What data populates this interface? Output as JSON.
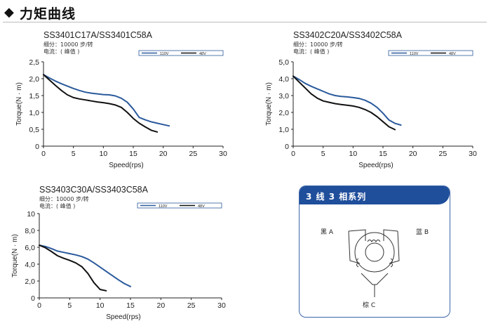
{
  "header": {
    "diamond": "◆",
    "title": "力矩曲线"
  },
  "chart_data": [
    {
      "type": "line",
      "model": "SS3401C17A/SS3401C58A",
      "sub1": "细分：10000 步/转",
      "sub2": "电流：( 峰值 )",
      "xlabel": "Speed(rps)",
      "ylabel": "Torque(N · m)",
      "xlim": [
        0,
        30
      ],
      "ylim": [
        0,
        2.5
      ],
      "xticks": [
        "0",
        "5",
        "10",
        "15",
        "20",
        "25",
        "30"
      ],
      "yticks": [
        "0",
        "0,5",
        "1,0",
        "1,5",
        "2,0",
        "2,5"
      ],
      "legend": "top-right",
      "series": [
        {
          "name": "110V",
          "color": "#2a5a9c",
          "x": [
            0,
            1,
            2,
            3,
            4,
            5,
            6,
            7,
            8,
            9,
            10,
            11,
            12,
            13,
            14,
            15,
            16,
            17,
            18,
            19,
            20,
            21
          ],
          "y": [
            2.12,
            2.02,
            1.93,
            1.85,
            1.78,
            1.71,
            1.65,
            1.6,
            1.57,
            1.55,
            1.53,
            1.52,
            1.49,
            1.42,
            1.3,
            1.1,
            0.85,
            0.78,
            0.72,
            0.68,
            0.64,
            0.6
          ]
        },
        {
          "name": "48V",
          "color": "#111111",
          "x": [
            0,
            1,
            2,
            3,
            4,
            5,
            6,
            7,
            8,
            9,
            10,
            11,
            12,
            13,
            14,
            15,
            16,
            17,
            18,
            19
          ],
          "y": [
            2.12,
            1.96,
            1.8,
            1.65,
            1.52,
            1.44,
            1.4,
            1.37,
            1.34,
            1.31,
            1.29,
            1.26,
            1.22,
            1.15,
            1.0,
            0.82,
            0.68,
            0.57,
            0.47,
            0.42
          ]
        }
      ]
    },
    {
      "type": "line",
      "model": "SS3402C20A/SS3402C58A",
      "sub1": "细分：10000 步/转",
      "sub2": "电流：( 峰值 )",
      "xlabel": "Speed(rps)",
      "ylabel": "Torque(N · m)",
      "xlim": [
        0,
        30
      ],
      "ylim": [
        0,
        5.0
      ],
      "xticks": [
        "0",
        "5",
        "10",
        "15",
        "20",
        "25",
        "30"
      ],
      "yticks": [
        "0",
        "1,0",
        "2,0",
        "3,0",
        "4,0",
        "5,0"
      ],
      "legend": "top-right",
      "series": [
        {
          "name": "110V",
          "color": "#2a5a9c",
          "x": [
            0,
            1,
            2,
            3,
            4,
            5,
            6,
            7,
            8,
            9,
            10,
            11,
            12,
            13,
            14,
            15,
            16,
            17,
            18
          ],
          "y": [
            4.15,
            3.95,
            3.72,
            3.55,
            3.4,
            3.25,
            3.1,
            3.0,
            2.95,
            2.92,
            2.88,
            2.83,
            2.72,
            2.55,
            2.3,
            1.95,
            1.55,
            1.35,
            1.25
          ]
        },
        {
          "name": "48V",
          "color": "#111111",
          "x": [
            0,
            1,
            2,
            3,
            4,
            5,
            6,
            7,
            8,
            9,
            10,
            11,
            12,
            13,
            14,
            15,
            16,
            17
          ],
          "y": [
            4.15,
            3.8,
            3.45,
            3.1,
            2.85,
            2.68,
            2.6,
            2.52,
            2.47,
            2.43,
            2.38,
            2.3,
            2.17,
            2.0,
            1.75,
            1.45,
            1.15,
            0.98
          ]
        }
      ]
    },
    {
      "type": "line",
      "model": "SS3403C30A/SS3403C58A",
      "sub1": "细分：10000 步/转",
      "sub2": "电流：( 峰值 )",
      "xlabel": "Speed(rps)",
      "ylabel": "Torque(N · m)",
      "xlim": [
        0,
        30
      ],
      "ylim": [
        0,
        10
      ],
      "xticks": [
        "0",
        "5",
        "10",
        "15",
        "20",
        "25",
        "30"
      ],
      "yticks": [
        "0",
        "2,0",
        "4,0",
        "6,0",
        "8,0",
        "10"
      ],
      "legend": "top-right",
      "series": [
        {
          "name": "110V",
          "color": "#2a5a9c",
          "x": [
            0,
            1,
            2,
            3,
            4,
            5,
            6,
            7,
            8,
            9,
            10,
            11,
            12,
            13,
            14,
            15
          ],
          "y": [
            6.25,
            6.1,
            5.85,
            5.55,
            5.4,
            5.25,
            5.1,
            4.9,
            4.6,
            4.15,
            3.65,
            3.15,
            2.65,
            2.15,
            1.7,
            1.35
          ]
        },
        {
          "name": "48V",
          "color": "#111111",
          "x": [
            0,
            1,
            2,
            3,
            4,
            5,
            6,
            7,
            8,
            9,
            10,
            11
          ],
          "y": [
            6.25,
            5.95,
            5.5,
            5.0,
            4.7,
            4.45,
            4.15,
            3.7,
            2.9,
            1.8,
            1.0,
            0.85
          ]
        }
      ]
    }
  ],
  "wiring": {
    "title": "3 线 3 相系列",
    "labels": {
      "a": "黑 A",
      "b": "蓝 B",
      "c": "棕 C"
    }
  }
}
